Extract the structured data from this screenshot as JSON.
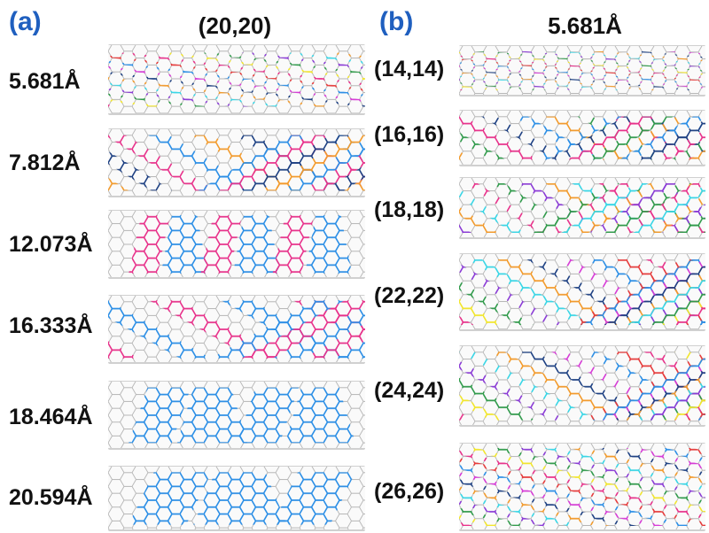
{
  "panel_a": {
    "letter": "(a)",
    "title": "(20,20)",
    "rows": [
      {
        "label": "5.681Å"
      },
      {
        "label": "7.812Å"
      },
      {
        "label": "12.073Å"
      },
      {
        "label": "16.333Å"
      },
      {
        "label": "18.464Å"
      },
      {
        "label": "20.594Å"
      }
    ]
  },
  "panel_b": {
    "letter": "(b)",
    "title": "5.681Å",
    "rows": [
      {
        "label": "(14,14)"
      },
      {
        "label": "(16,16)"
      },
      {
        "label": "(18,18)"
      },
      {
        "label": "(22,22)"
      },
      {
        "label": "(24,24)"
      },
      {
        "label": "(26,26)"
      }
    ]
  },
  "colors": {
    "lattice": "#b4b4b4",
    "blue": "#2a8ee6",
    "pink": "#e8308a",
    "orange": "#f39a2a",
    "navy": "#1c3f82",
    "green": "#2f9a4a",
    "yellow": "#f2e62a",
    "cyan": "#37d6e6",
    "purple": "#8a3ad6",
    "magenta": "#d63ad6",
    "red": "#e63a3a",
    "accent": "#1f5fbf"
  }
}
